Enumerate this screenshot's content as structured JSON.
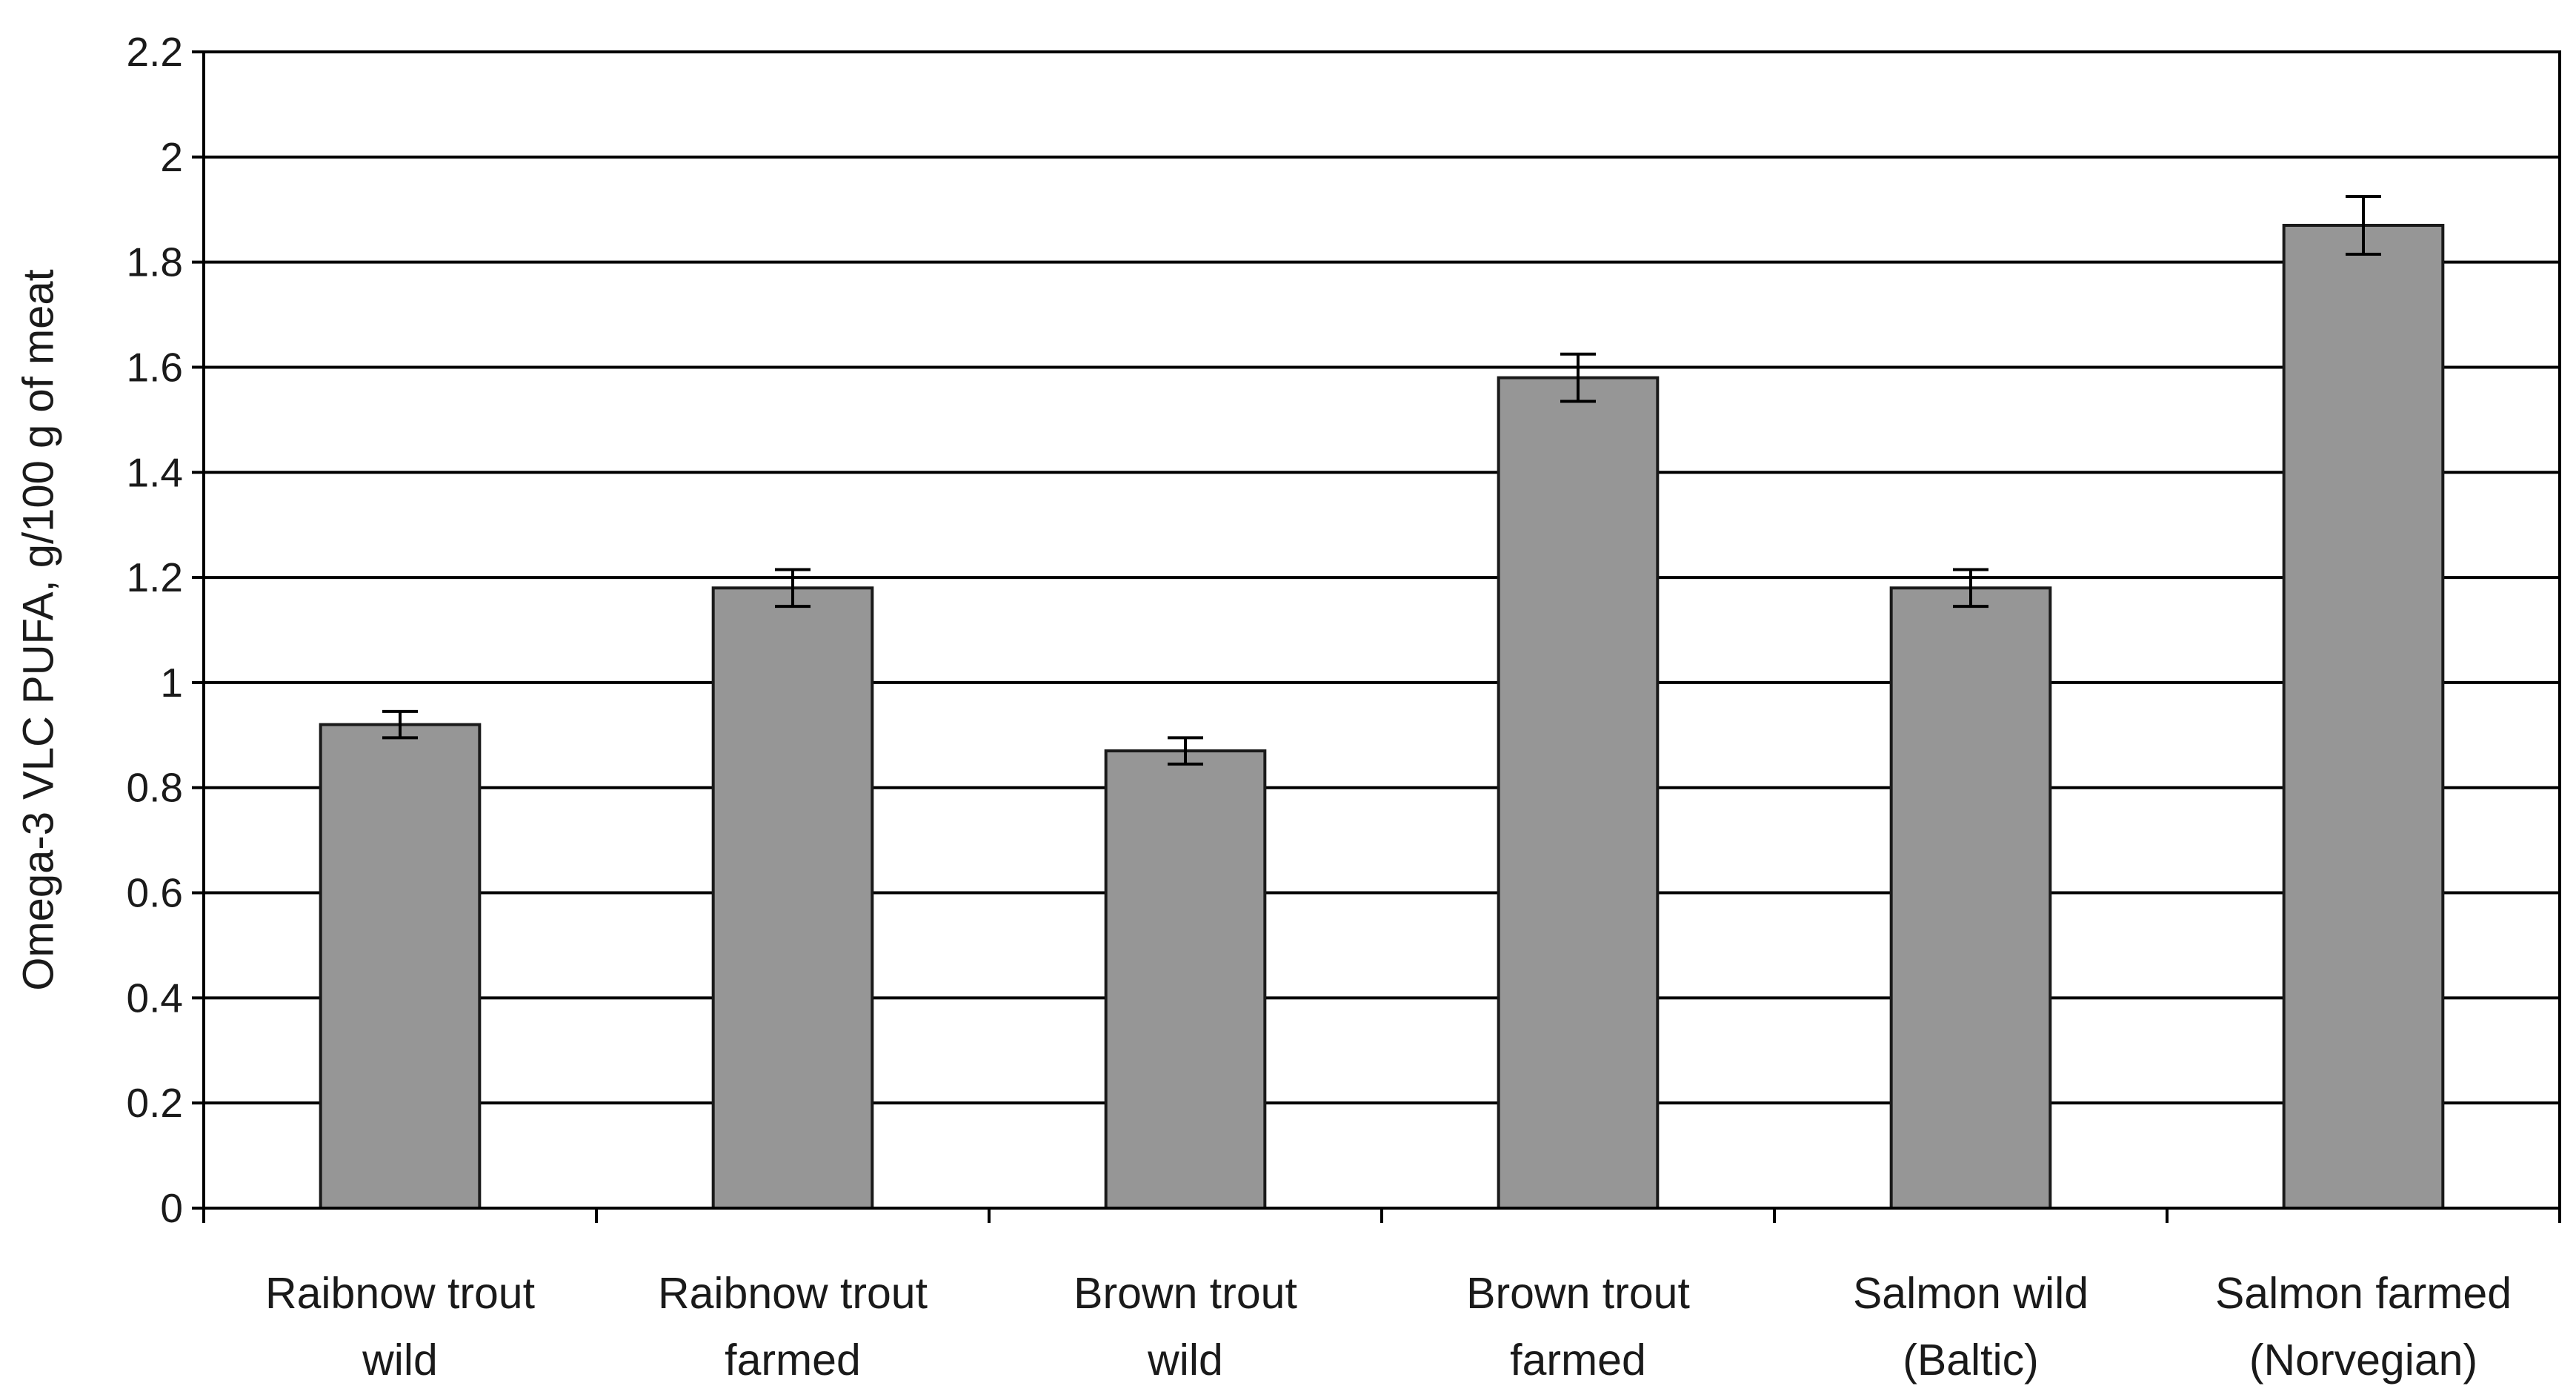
{
  "chart_data": {
    "type": "bar",
    "title": "",
    "xlabel": "",
    "ylabel": "Omega-3 VLC PUFA, g/100 g of meat",
    "ylim": [
      0,
      2.2
    ],
    "yticks": [
      0,
      0.2,
      0.4,
      0.6,
      0.8,
      1,
      1.2,
      1.4,
      1.6,
      1.8,
      2,
      2.2
    ],
    "ytick_labels": [
      "0",
      "0.2",
      "0.4",
      "0.6",
      "0.8",
      "1",
      "1.2",
      "1.4",
      "1.6",
      "1.8",
      "2",
      "2.2"
    ],
    "grid": true,
    "legend": "none",
    "categories": [
      [
        "Raibnow trout",
        "wild"
      ],
      [
        "Raibnow trout",
        "farmed"
      ],
      [
        "Brown trout",
        "wild"
      ],
      [
        "Brown trout",
        "farmed"
      ],
      [
        "Salmon wild",
        "(Baltic)"
      ],
      [
        "Salmon farmed",
        "(Norvegian)"
      ]
    ],
    "values": [
      0.92,
      1.18,
      0.87,
      1.58,
      1.18,
      1.87
    ],
    "errors": [
      0.025,
      0.035,
      0.025,
      0.045,
      0.035,
      0.055
    ],
    "colors": {
      "bar_fill": "#969696",
      "bar_stroke": "#1a1a1a",
      "grid": "#000000",
      "axis": "#000000",
      "error_bar": "#000000"
    }
  }
}
